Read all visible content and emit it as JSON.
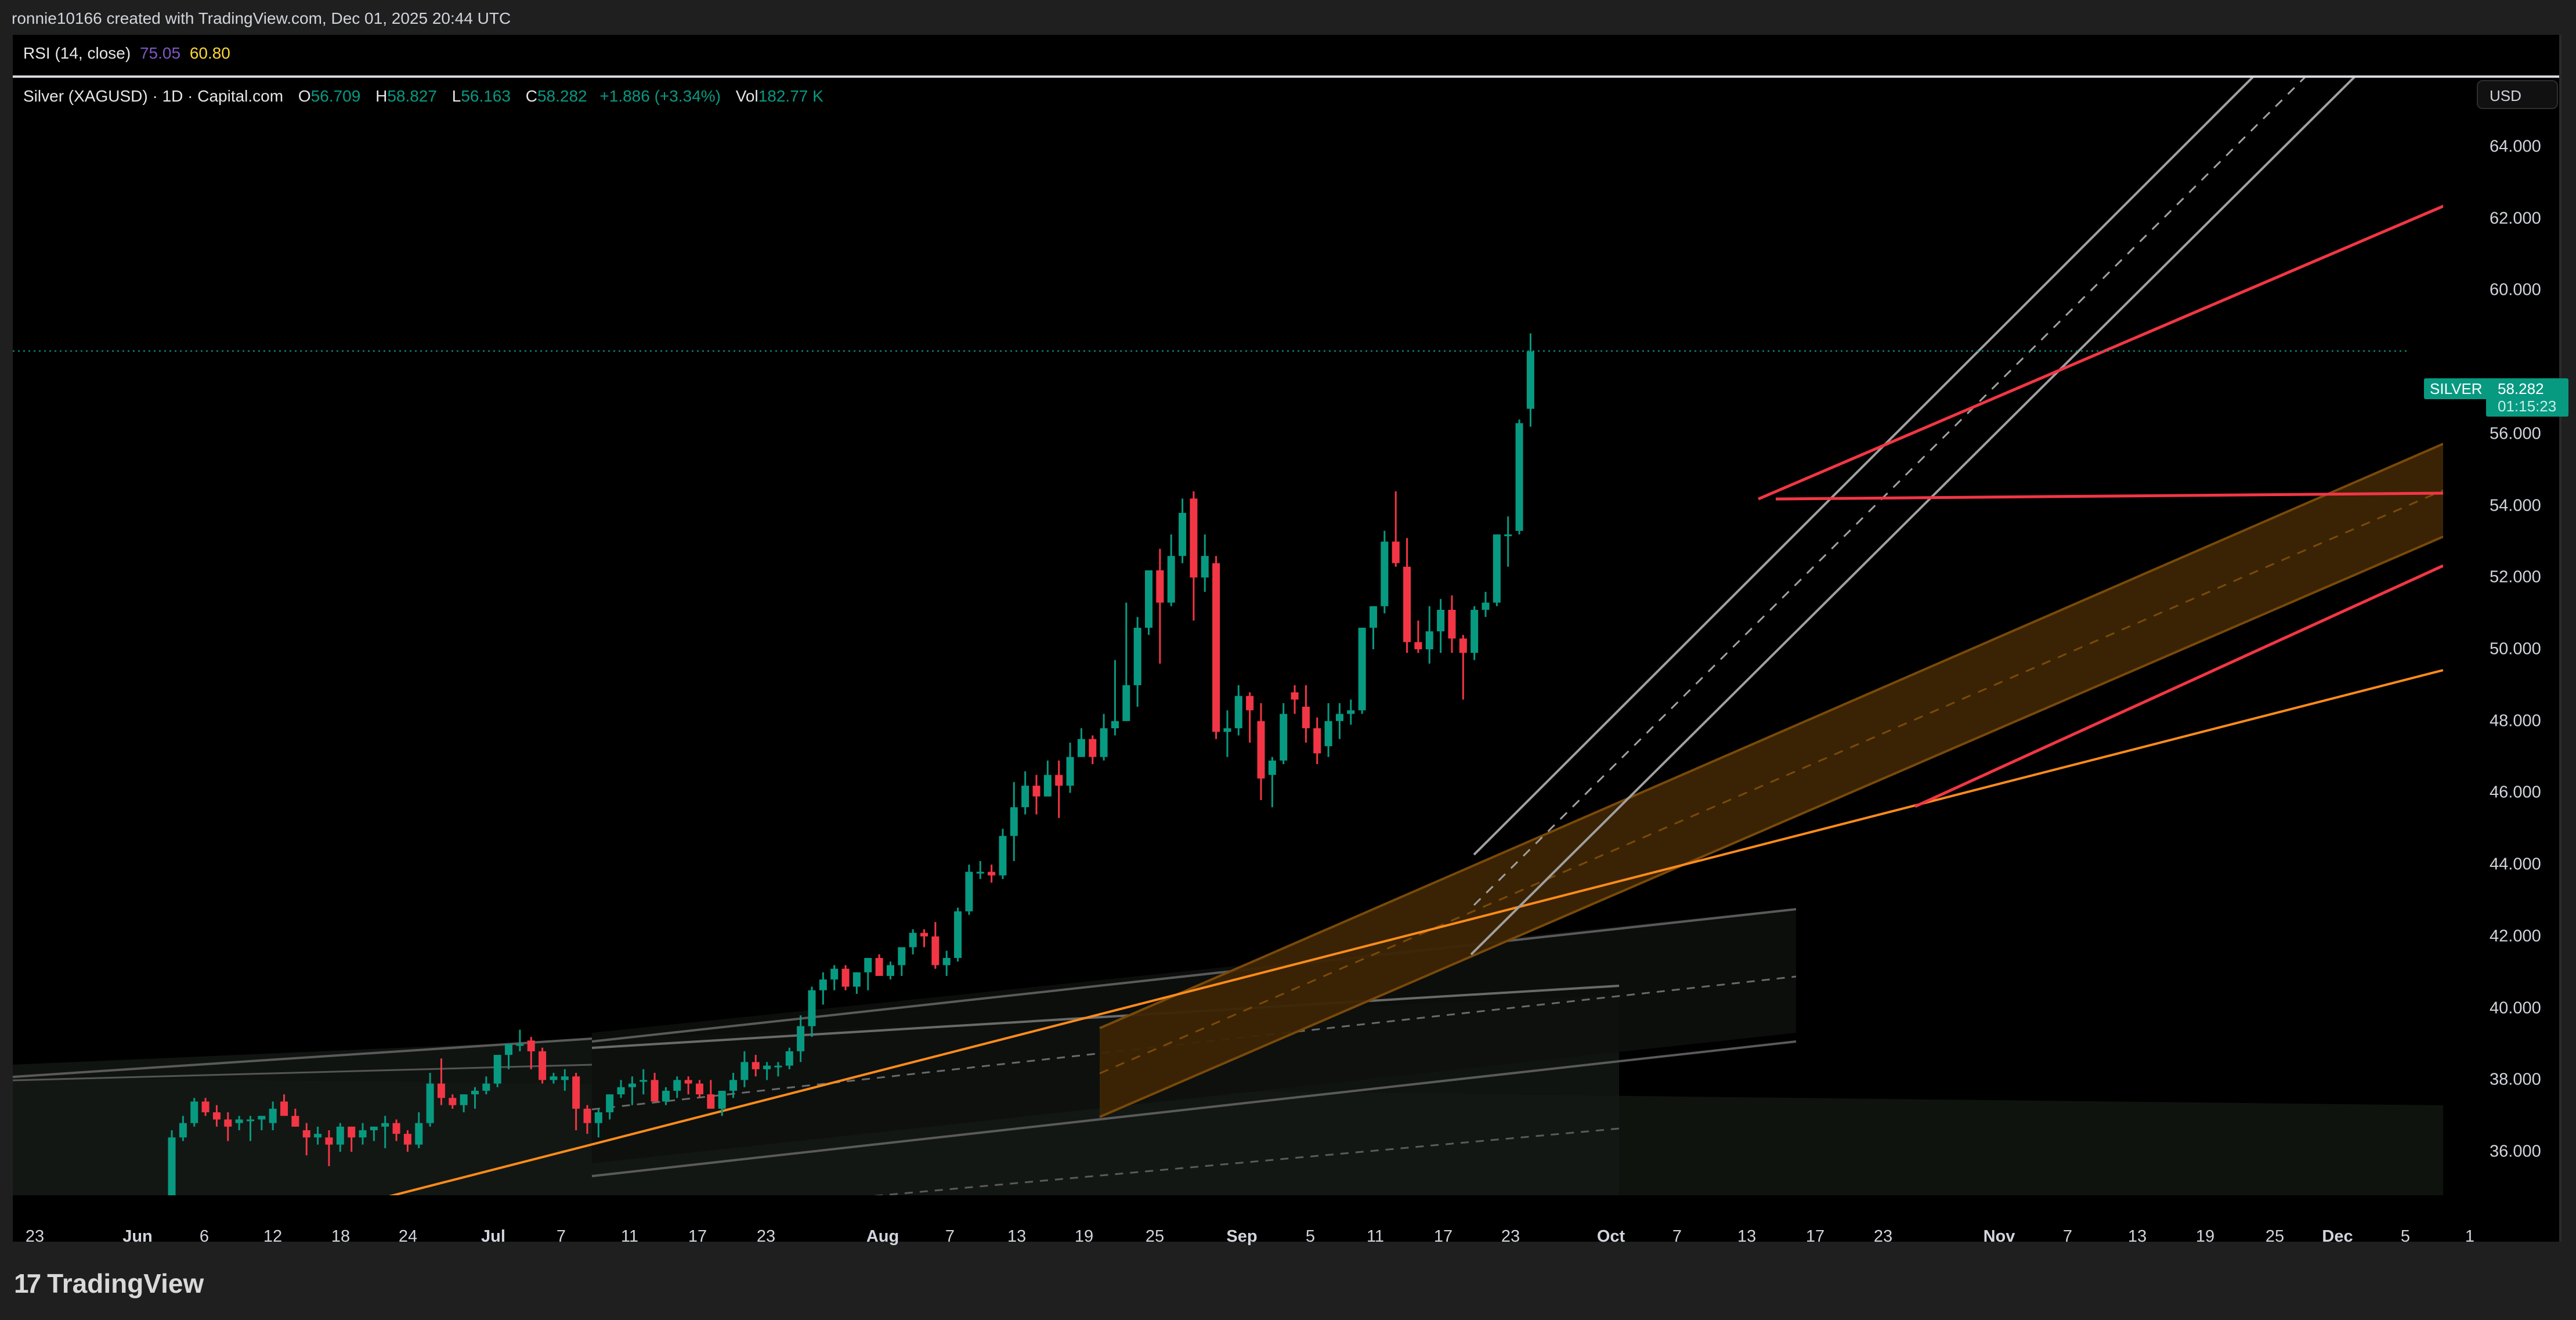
{
  "header": {
    "credit": "ronnie10166 created with TradingView.com, Dec 01, 2025 20:44 UTC"
  },
  "rsi": {
    "label": "RSI (14, close)",
    "value": "75.05",
    "signal": "60.80",
    "value_color": "#7e57c2",
    "signal_color": "#fdd835"
  },
  "legend": {
    "title": "Silver (XAGUSD) · 1D · Capital.com",
    "o_label": "O",
    "o_value": "56.709",
    "h_label": "H",
    "h_value": "58.827",
    "l_label": "L",
    "l_value": "56.163",
    "c_label": "C",
    "c_value": "58.282",
    "change": "+1.886 (+3.34%)",
    "vol_label": "Vol",
    "vol_value": "182.77 K"
  },
  "price_axis": {
    "currency_button": "USD",
    "ticks": [
      "64.000",
      "62.000",
      "60.000",
      "56.000",
      "54.000",
      "52.000",
      "50.000",
      "48.000",
      "46.000",
      "44.000",
      "42.000",
      "40.000",
      "38.000",
      "36.000"
    ],
    "symbol_tag": "SILVER",
    "last_price": "58.282",
    "countdown": "01:15:23"
  },
  "time_axis": {
    "ticks": [
      {
        "label": "23",
        "x": 60,
        "month": false
      },
      {
        "label": "Jun",
        "x": 237,
        "month": true
      },
      {
        "label": "6",
        "x": 352,
        "month": false
      },
      {
        "label": "12",
        "x": 470,
        "month": false
      },
      {
        "label": "18",
        "x": 587,
        "month": false
      },
      {
        "label": "24",
        "x": 703,
        "month": false
      },
      {
        "label": "Jul",
        "x": 850,
        "month": true
      },
      {
        "label": "7",
        "x": 967,
        "month": false
      },
      {
        "label": "11",
        "x": 1085,
        "month": false
      },
      {
        "label": "17",
        "x": 1202,
        "month": false
      },
      {
        "label": "23",
        "x": 1320,
        "month": false
      },
      {
        "label": "Aug",
        "x": 1521,
        "month": true
      },
      {
        "label": "7",
        "x": 1637,
        "month": false
      },
      {
        "label": "13",
        "x": 1752,
        "month": false
      },
      {
        "label": "19",
        "x": 1868,
        "month": false
      },
      {
        "label": "25",
        "x": 1990,
        "month": false
      },
      {
        "label": "Sep",
        "x": 2140,
        "month": true
      },
      {
        "label": "5",
        "x": 2258,
        "month": false
      },
      {
        "label": "11",
        "x": 2370,
        "month": false
      },
      {
        "label": "17",
        "x": 2487,
        "month": false
      },
      {
        "label": "23",
        "x": 2603,
        "month": false
      },
      {
        "label": "Oct",
        "x": 2776,
        "month": true
      },
      {
        "label": "7",
        "x": 2890,
        "month": false
      },
      {
        "label": "13",
        "x": 3010,
        "month": false
      },
      {
        "label": "17",
        "x": 3128,
        "month": false
      },
      {
        "label": "23",
        "x": 3245,
        "month": false
      },
      {
        "label": "Nov",
        "x": 3445,
        "month": true
      },
      {
        "label": "7",
        "x": 3563,
        "month": false
      },
      {
        "label": "13",
        "x": 3683,
        "month": false
      },
      {
        "label": "19",
        "x": 3800,
        "month": false
      },
      {
        "label": "25",
        "x": 3920,
        "month": false
      },
      {
        "label": "Dec",
        "x": 4028,
        "month": true
      },
      {
        "label": "5",
        "x": 4145,
        "month": false
      },
      {
        "label": "1",
        "x": 4256,
        "month": false
      }
    ]
  },
  "footer": {
    "logo_mark": "17",
    "logo_text": "TradingView"
  },
  "colors": {
    "up": "#089981",
    "down": "#f23645",
    "background": "#000000",
    "frame": "#1f1f1f",
    "channel_fill": "#3d2504",
    "channel_line": "#7a4a0a",
    "orange_line": "#ff8c1a",
    "red_line": "#f23645",
    "grey_line": "#9e9e9e"
  },
  "chart_data": {
    "type": "candlestick",
    "title": "Silver (XAGUSD) · 1D · Capital.com",
    "xlabel": "",
    "ylabel": "USD",
    "ylim": [
      35.0,
      65.0
    ],
    "y_ticks": [
      36,
      38,
      40,
      42,
      44,
      46,
      48,
      50,
      52,
      54,
      56,
      58,
      60,
      62,
      64
    ],
    "x_ticks": [
      "23",
      "Jun",
      "6",
      "12",
      "18",
      "24",
      "Jul",
      "7",
      "11",
      "17",
      "23",
      "Aug",
      "7",
      "13",
      "19",
      "25",
      "Sep",
      "5",
      "11",
      "17",
      "23",
      "Oct",
      "7",
      "13",
      "17",
      "23",
      "Nov",
      "7",
      "13",
      "19",
      "25",
      "Dec",
      "5",
      "1"
    ],
    "last": {
      "open": 56.709,
      "high": 58.827,
      "low": 56.163,
      "close": 58.282,
      "change": 1.886,
      "change_pct": 3.34,
      "volume": "182.77K"
    },
    "indicators": [
      {
        "name": "RSI (14, close)",
        "value": 75.05,
        "signal": 60.8
      }
    ],
    "grid": false,
    "legend_position": "top-left",
    "candles_x_start": 238,
    "candles_x_step": 19.35,
    "candles": [
      [
        34.2,
        34.5,
        34.0,
        34.4
      ],
      [
        34.4,
        34.6,
        34.1,
        34.3
      ],
      [
        34.3,
        34.4,
        34.1,
        34.2
      ],
      [
        34.2,
        36.6,
        34.1,
        36.4
      ],
      [
        36.4,
        37.0,
        36.3,
        36.8
      ],
      [
        36.8,
        37.5,
        36.7,
        37.4
      ],
      [
        37.4,
        37.5,
        37.0,
        37.1
      ],
      [
        37.1,
        37.3,
        36.7,
        36.9
      ],
      [
        36.9,
        37.1,
        36.3,
        36.7
      ],
      [
        36.8,
        37.0,
        36.6,
        36.9
      ],
      [
        36.9,
        37.0,
        36.3,
        36.9
      ],
      [
        36.9,
        37.0,
        36.6,
        37.0
      ],
      [
        36.8,
        37.4,
        36.6,
        37.2
      ],
      [
        37.4,
        37.6,
        37.1,
        37.0
      ],
      [
        37.0,
        37.2,
        36.7,
        36.7
      ],
      [
        36.6,
        36.8,
        35.9,
        36.4
      ],
      [
        36.4,
        36.7,
        36.2,
        36.5
      ],
      [
        36.4,
        36.6,
        35.6,
        36.2
      ],
      [
        36.2,
        36.8,
        36.0,
        36.7
      ],
      [
        36.7,
        36.7,
        36.0,
        36.4
      ],
      [
        36.4,
        36.8,
        36.2,
        36.6
      ],
      [
        36.6,
        36.7,
        36.3,
        36.7
      ],
      [
        36.7,
        37.0,
        36.1,
        36.8
      ],
      [
        36.8,
        36.9,
        36.3,
        36.5
      ],
      [
        36.5,
        36.6,
        36.0,
        36.2
      ],
      [
        36.2,
        37.1,
        36.1,
        36.8
      ],
      [
        36.8,
        38.2,
        36.7,
        37.9
      ],
      [
        37.9,
        38.6,
        37.3,
        37.5
      ],
      [
        37.5,
        37.6,
        37.2,
        37.3
      ],
      [
        37.3,
        37.6,
        37.1,
        37.6
      ],
      [
        37.6,
        37.8,
        37.2,
        37.7
      ],
      [
        37.7,
        38.1,
        37.6,
        37.9
      ],
      [
        37.9,
        38.6,
        37.8,
        38.7
      ],
      [
        38.7,
        39.0,
        38.3,
        39.0
      ],
      [
        39.0,
        39.4,
        38.8,
        39.0
      ],
      [
        39.1,
        39.2,
        38.3,
        38.8
      ],
      [
        38.8,
        38.9,
        37.9,
        38.0
      ],
      [
        38.0,
        38.2,
        37.9,
        38.1
      ],
      [
        38.0,
        38.3,
        37.7,
        38.1
      ],
      [
        38.1,
        38.2,
        36.6,
        37.2
      ],
      [
        37.2,
        37.3,
        36.5,
        36.8
      ],
      [
        36.8,
        37.2,
        36.4,
        37.1
      ],
      [
        37.1,
        37.6,
        36.9,
        37.6
      ],
      [
        37.6,
        38.0,
        37.5,
        37.8
      ],
      [
        37.8,
        38.1,
        37.3,
        37.9
      ],
      [
        38.0,
        38.3,
        37.6,
        38.0
      ],
      [
        38.0,
        38.2,
        37.5,
        37.4
      ],
      [
        37.4,
        37.8,
        37.3,
        37.7
      ],
      [
        37.7,
        38.1,
        37.5,
        38.0
      ],
      [
        38.0,
        38.1,
        37.6,
        37.9
      ],
      [
        37.9,
        38.0,
        37.5,
        37.6
      ],
      [
        37.6,
        38.0,
        37.3,
        37.2
      ],
      [
        37.2,
        37.7,
        37.0,
        37.7
      ],
      [
        37.7,
        38.2,
        37.5,
        38.0
      ],
      [
        38.0,
        38.8,
        37.8,
        38.5
      ],
      [
        38.5,
        38.7,
        38.1,
        38.3
      ],
      [
        38.3,
        38.5,
        38.0,
        38.4
      ],
      [
        38.4,
        38.5,
        38.1,
        38.4
      ],
      [
        38.4,
        38.9,
        38.3,
        38.8
      ],
      [
        38.8,
        39.8,
        38.5,
        39.5
      ],
      [
        39.5,
        40.6,
        39.2,
        40.5
      ],
      [
        40.5,
        41.0,
        40.1,
        40.8
      ],
      [
        40.8,
        41.2,
        40.5,
        41.1
      ],
      [
        41.1,
        41.2,
        40.5,
        40.6
      ],
      [
        40.6,
        41.0,
        40.4,
        41.0
      ],
      [
        41.0,
        41.4,
        40.5,
        41.4
      ],
      [
        41.4,
        41.5,
        40.9,
        40.9
      ],
      [
        40.9,
        41.3,
        40.8,
        41.2
      ],
      [
        41.2,
        41.7,
        40.9,
        41.7
      ],
      [
        41.7,
        42.2,
        41.5,
        42.1
      ],
      [
        42.1,
        42.2,
        41.7,
        42.0
      ],
      [
        42.0,
        42.4,
        41.1,
        41.2
      ],
      [
        41.2,
        41.6,
        40.9,
        41.4
      ],
      [
        41.4,
        42.8,
        41.3,
        42.7
      ],
      [
        42.7,
        44.0,
        42.6,
        43.8
      ],
      [
        43.8,
        44.1,
        43.6,
        43.8
      ],
      [
        43.8,
        44.0,
        43.5,
        43.7
      ],
      [
        43.7,
        45.0,
        43.6,
        44.8
      ],
      [
        44.8,
        46.3,
        44.1,
        45.6
      ],
      [
        45.6,
        46.6,
        45.4,
        46.2
      ],
      [
        46.2,
        46.5,
        45.4,
        45.9
      ],
      [
        45.9,
        46.9,
        45.9,
        46.5
      ],
      [
        46.5,
        46.9,
        45.3,
        46.2
      ],
      [
        46.2,
        47.4,
        46.0,
        47.0
      ],
      [
        47.0,
        47.8,
        47.0,
        47.5
      ],
      [
        47.5,
        47.6,
        46.8,
        47.0
      ],
      [
        47.0,
        48.2,
        46.9,
        47.8
      ],
      [
        47.8,
        49.7,
        47.6,
        48.0
      ],
      [
        48.0,
        51.3,
        48.0,
        49.0
      ],
      [
        49.0,
        50.9,
        48.4,
        50.6
      ],
      [
        50.6,
        52.2,
        50.4,
        52.2
      ],
      [
        52.2,
        52.8,
        49.6,
        51.3
      ],
      [
        51.3,
        53.2,
        51.2,
        52.6
      ],
      [
        52.6,
        54.2,
        52.4,
        53.8
      ],
      [
        54.2,
        54.4,
        50.8,
        52.0
      ],
      [
        52.0,
        53.2,
        51.6,
        52.6
      ],
      [
        52.4,
        52.6,
        47.5,
        47.7
      ],
      [
        47.7,
        48.3,
        47.0,
        47.8
      ],
      [
        47.8,
        49.0,
        47.6,
        48.7
      ],
      [
        48.7,
        48.8,
        47.4,
        48.3
      ],
      [
        48.0,
        48.5,
        45.8,
        46.4
      ],
      [
        46.5,
        47.0,
        45.6,
        46.9
      ],
      [
        46.9,
        48.5,
        46.8,
        48.2
      ],
      [
        48.8,
        49.0,
        48.2,
        48.6
      ],
      [
        48.4,
        49.0,
        47.4,
        47.8
      ],
      [
        47.8,
        48.1,
        46.8,
        47.1
      ],
      [
        47.3,
        48.5,
        47.0,
        48.0
      ],
      [
        48.0,
        48.5,
        47.5,
        48.2
      ],
      [
        48.2,
        48.6,
        47.9,
        48.3
      ],
      [
        48.3,
        50.6,
        48.2,
        50.6
      ],
      [
        50.6,
        51.2,
        50.0,
        51.2
      ],
      [
        51.2,
        53.3,
        51.0,
        53.0
      ],
      [
        53.0,
        54.4,
        52.3,
        52.4
      ],
      [
        52.3,
        53.1,
        49.9,
        50.2
      ],
      [
        50.2,
        50.8,
        49.9,
        50.0
      ],
      [
        50.0,
        51.2,
        49.6,
        50.5
      ],
      [
        50.5,
        51.4,
        49.9,
        51.1
      ],
      [
        51.1,
        51.5,
        49.9,
        50.3
      ],
      [
        50.3,
        50.4,
        48.6,
        49.9
      ],
      [
        49.9,
        51.2,
        49.7,
        51.1
      ],
      [
        51.1,
        51.6,
        50.9,
        51.3
      ],
      [
        51.3,
        53.2,
        51.2,
        53.2
      ],
      [
        53.2,
        53.7,
        52.3,
        53.2
      ],
      [
        53.3,
        56.4,
        53.2,
        56.3
      ],
      [
        56.7,
        58.8,
        56.2,
        58.3
      ]
    ],
    "drawings": [
      {
        "type": "parallel_channel",
        "color": "#9e9e9e",
        "desc": "steep grey rising channel Sep-Oct extended to top"
      },
      {
        "type": "parallel_channel",
        "color": "#ff9800",
        "fill": "#3d2504",
        "desc": "orange filled rising channel from late Aug to Dec"
      },
      {
        "type": "trend_line",
        "color": "#f23645",
        "desc": "horizontal resistance ~54.3 from Oct 16 peak"
      },
      {
        "type": "trend_line",
        "color": "#f23645",
        "desc": "rising resistance from Oct high to ~62.5"
      },
      {
        "type": "trend_line",
        "color": "#f23645",
        "desc": "rising support from late Oct low to ~52.2"
      },
      {
        "type": "trend_line",
        "color": "#ff8c1a",
        "desc": "long orange support from June to ~49.4"
      },
      {
        "type": "parallel_channel",
        "color": "#5a5a5a",
        "desc": "grey low-slope channels May-Oct"
      }
    ]
  }
}
